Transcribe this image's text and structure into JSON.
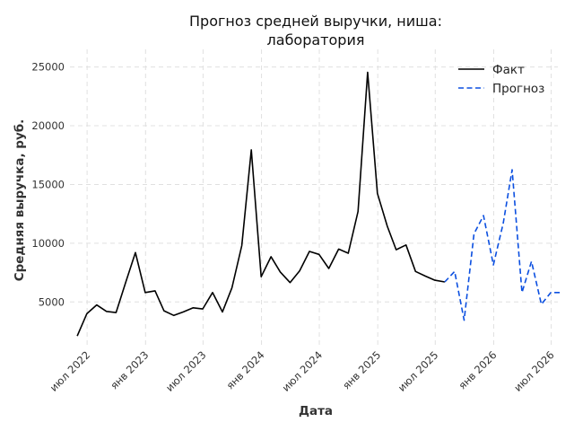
{
  "chart_data": {
    "type": "line",
    "title": [
      "Прогноз средней выручки, ниша:",
      "лаборатория"
    ],
    "xlabel": "Дата",
    "ylabel": "Средняя выручка, руб.",
    "ylim": [
      1200,
      26500
    ],
    "xlim": [
      "2022-05-08",
      "2026-07-22"
    ],
    "y_ticks": [
      5000,
      10000,
      15000,
      20000,
      25000
    ],
    "y_tick_labels": [
      "5000",
      "10000",
      "15000",
      "20000",
      "25000"
    ],
    "x_ticks": [
      {
        "date": "2022-07-01",
        "label": "июл 2022"
      },
      {
        "date": "2023-01-01",
        "label": "янв 2023"
      },
      {
        "date": "2023-07-01",
        "label": "июл 2023"
      },
      {
        "date": "2024-01-01",
        "label": "янв 2024"
      },
      {
        "date": "2024-07-01",
        "label": "июл 2024"
      },
      {
        "date": "2025-01-01",
        "label": "янв 2025"
      },
      {
        "date": "2025-07-01",
        "label": "июл 2025"
      },
      {
        "date": "2026-01-01",
        "label": "янв 2026"
      },
      {
        "date": "2026-07-01",
        "label": "июл 2026"
      }
    ],
    "grid": true,
    "legend_position": "top-right",
    "colors": {
      "fact": "#000000",
      "forecast": "#0b4fe0"
    },
    "series": [
      {
        "name": "Факт",
        "style": "solid",
        "x": [
          "2022-05-31",
          "2022-06-30",
          "2022-07-31",
          "2022-08-31",
          "2022-09-30",
          "2022-10-31",
          "2022-11-30",
          "2022-12-31",
          "2023-01-31",
          "2023-02-28",
          "2023-03-31",
          "2023-04-30",
          "2023-05-31",
          "2023-06-30",
          "2023-07-31",
          "2023-08-31",
          "2023-09-30",
          "2023-10-31",
          "2023-11-30",
          "2023-12-31",
          "2024-01-31",
          "2024-02-29",
          "2024-03-31",
          "2024-04-30",
          "2024-05-31",
          "2024-06-30",
          "2024-07-31",
          "2024-08-31",
          "2024-09-30",
          "2024-10-31",
          "2024-11-30",
          "2024-12-31",
          "2025-01-31",
          "2025-02-28",
          "2025-03-31",
          "2025-04-30",
          "2025-05-31",
          "2025-06-30",
          "2025-07-31"
        ],
        "y": [
          2100,
          4000,
          4750,
          4200,
          4100,
          6700,
          9200,
          5800,
          5950,
          4250,
          3850,
          4150,
          4500,
          4400,
          5800,
          4150,
          6200,
          9800,
          17950,
          7150,
          8850,
          7550,
          6650,
          7650,
          9300,
          9050,
          7850,
          9500,
          9150,
          12700,
          24550,
          14250,
          11450,
          9450,
          9850,
          7600,
          7200,
          6850,
          6700
        ]
      },
      {
        "name": "Прогноз",
        "style": "dashed",
        "x": [
          "2025-07-31",
          "2025-08-31",
          "2025-09-30",
          "2025-10-31",
          "2025-11-30",
          "2025-12-31",
          "2026-01-31",
          "2026-02-28",
          "2026-03-31",
          "2026-04-30",
          "2026-05-31",
          "2026-06-30",
          "2026-07-31"
        ],
        "y": [
          6700,
          7600,
          3450,
          10800,
          12350,
          8150,
          11700,
          16250,
          5800,
          8450,
          4800,
          5800,
          5800
        ]
      }
    ]
  }
}
